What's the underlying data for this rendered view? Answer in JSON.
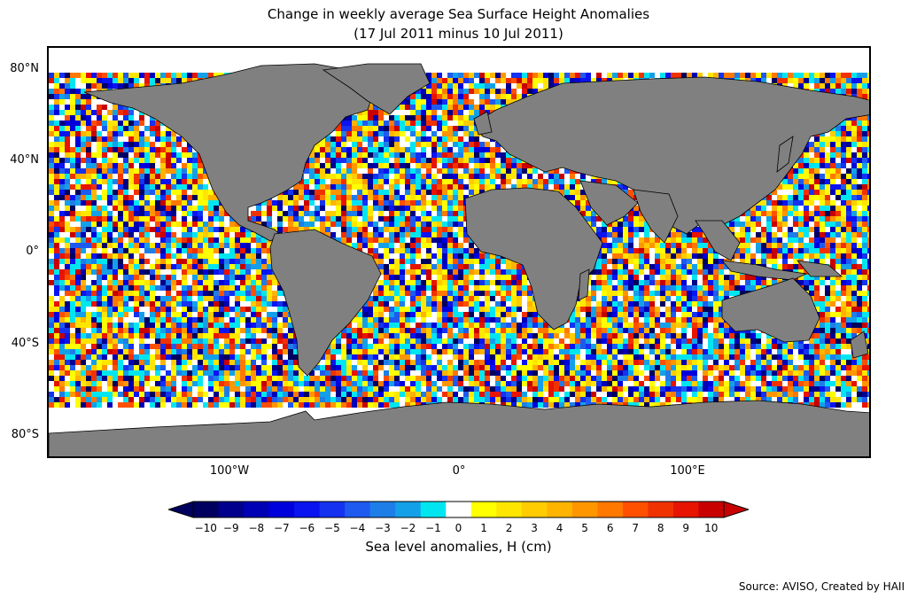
{
  "title_line1": "Change in weekly average Sea Surface Height Anomalies",
  "title_line2": "(17 Jul 2011 minus 10 Jul 2011)",
  "lat_labels": [
    "80°N",
    "40°N",
    "0°",
    "40°S",
    "80°S"
  ],
  "lon_labels": [
    "100°W",
    "0°",
    "100°E"
  ],
  "colorbar": {
    "label": "Sea level anomalies, H (cm)",
    "ticks": [
      "−10",
      "−9",
      "−8",
      "−7",
      "−6",
      "−5",
      "−4",
      "−3",
      "−2",
      "−1",
      "0",
      "1",
      "2",
      "3",
      "4",
      "5",
      "6",
      "7",
      "8",
      "9",
      "10"
    ],
    "colors": [
      "#00005e",
      "#00008c",
      "#0000b4",
      "#0000dc",
      "#0a14f0",
      "#1432f0",
      "#1e5af0",
      "#1e7ee8",
      "#14a0e8",
      "#00e6f0",
      "#ffffff",
      "#ffff00",
      "#ffe600",
      "#ffcc00",
      "#ffb400",
      "#ff9600",
      "#ff7800",
      "#ff5000",
      "#f03200",
      "#e61400",
      "#c80000"
    ]
  },
  "source": "Source: AVISO, Created by HAII",
  "land_color": "#808080"
}
